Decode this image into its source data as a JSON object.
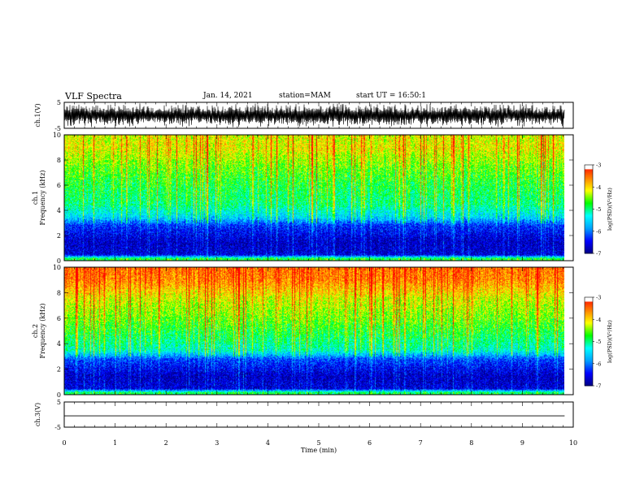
{
  "header": {
    "title": "VLF Spectra",
    "date": "Jan. 14, 2021",
    "station": "station=MAM",
    "start": "start UT = 16:50:1"
  },
  "chart_data": [
    {
      "type": "line",
      "panel": "ch1-waveform",
      "ylabel": "ch.1(V)",
      "ylim": [
        -5,
        5
      ],
      "yticks": [
        "5",
        "-5"
      ],
      "description_series": "dense oscillating waveform, amplitude ~ +/-5 V"
    },
    {
      "type": "heatmap",
      "panel": "ch1-spectrogram",
      "ylabel": "ch.1 Frequency (kHz)",
      "ylim": [
        0,
        10
      ],
      "yticks": [
        "0",
        "2",
        "4",
        "6",
        "8",
        "10"
      ],
      "xlim": [
        0,
        10
      ],
      "colorbar": {
        "label": "log(PSD)(V²/Hz)",
        "ticks": [
          "-3",
          "-4",
          "-5",
          "-6",
          "-7"
        ],
        "range": [
          -7,
          -3
        ]
      },
      "profile": [
        {
          "f": 0.2,
          "v": -4.8
        },
        {
          "f": 0.5,
          "v": -6.6
        },
        {
          "f": 1.5,
          "v": -6.7
        },
        {
          "f": 2.8,
          "v": -6.3
        },
        {
          "f": 3.5,
          "v": -5.5
        },
        {
          "f": 4.5,
          "v": -5.0
        },
        {
          "f": 6.0,
          "v": -4.8
        },
        {
          "f": 7.5,
          "v": -4.5
        },
        {
          "f": 9.0,
          "v": -4.1
        },
        {
          "f": 10.0,
          "v": -4.2
        }
      ]
    },
    {
      "type": "heatmap",
      "panel": "ch2-spectrogram",
      "ylabel": "ch.2 Frequency (kHz)",
      "ylim": [
        0,
        10
      ],
      "yticks": [
        "0",
        "2",
        "4",
        "6",
        "8",
        "10"
      ],
      "xlim": [
        0,
        10
      ],
      "colorbar": {
        "label": "log(PSD)(V²/Hz)",
        "ticks": [
          "-3",
          "-4",
          "-5",
          "-6",
          "-7"
        ],
        "range": [
          -7,
          -3
        ]
      },
      "profile": [
        {
          "f": 0.2,
          "v": -4.9
        },
        {
          "f": 0.5,
          "v": -6.6
        },
        {
          "f": 1.5,
          "v": -6.7
        },
        {
          "f": 2.8,
          "v": -6.2
        },
        {
          "f": 3.5,
          "v": -5.2
        },
        {
          "f": 4.5,
          "v": -4.9
        },
        {
          "f": 6.0,
          "v": -4.5
        },
        {
          "f": 7.5,
          "v": -4.2
        },
        {
          "f": 9.0,
          "v": -3.6
        },
        {
          "f": 10.0,
          "v": -3.5
        }
      ]
    },
    {
      "type": "line",
      "panel": "ch3-waveform",
      "ylabel": "ch.3(V)",
      "ylim": [
        -5,
        5
      ],
      "yticks": [
        "5",
        "-5"
      ],
      "x": [
        0,
        9.83
      ],
      "y": [
        -0.5,
        -0.5
      ]
    }
  ],
  "xaxis": {
    "label": "Time (min)",
    "ticks": [
      "0",
      "1",
      "2",
      "3",
      "4",
      "5",
      "6",
      "7",
      "8",
      "9",
      "10"
    ],
    "xlim": [
      0,
      10
    ],
    "data_end": 9.83
  },
  "colors": {
    "colormap": [
      "#000080",
      "#0000ff",
      "#00a0ff",
      "#00ffff",
      "#00ff00",
      "#ffff00",
      "#ff8000",
      "#ff0000",
      "#ffffff"
    ]
  }
}
